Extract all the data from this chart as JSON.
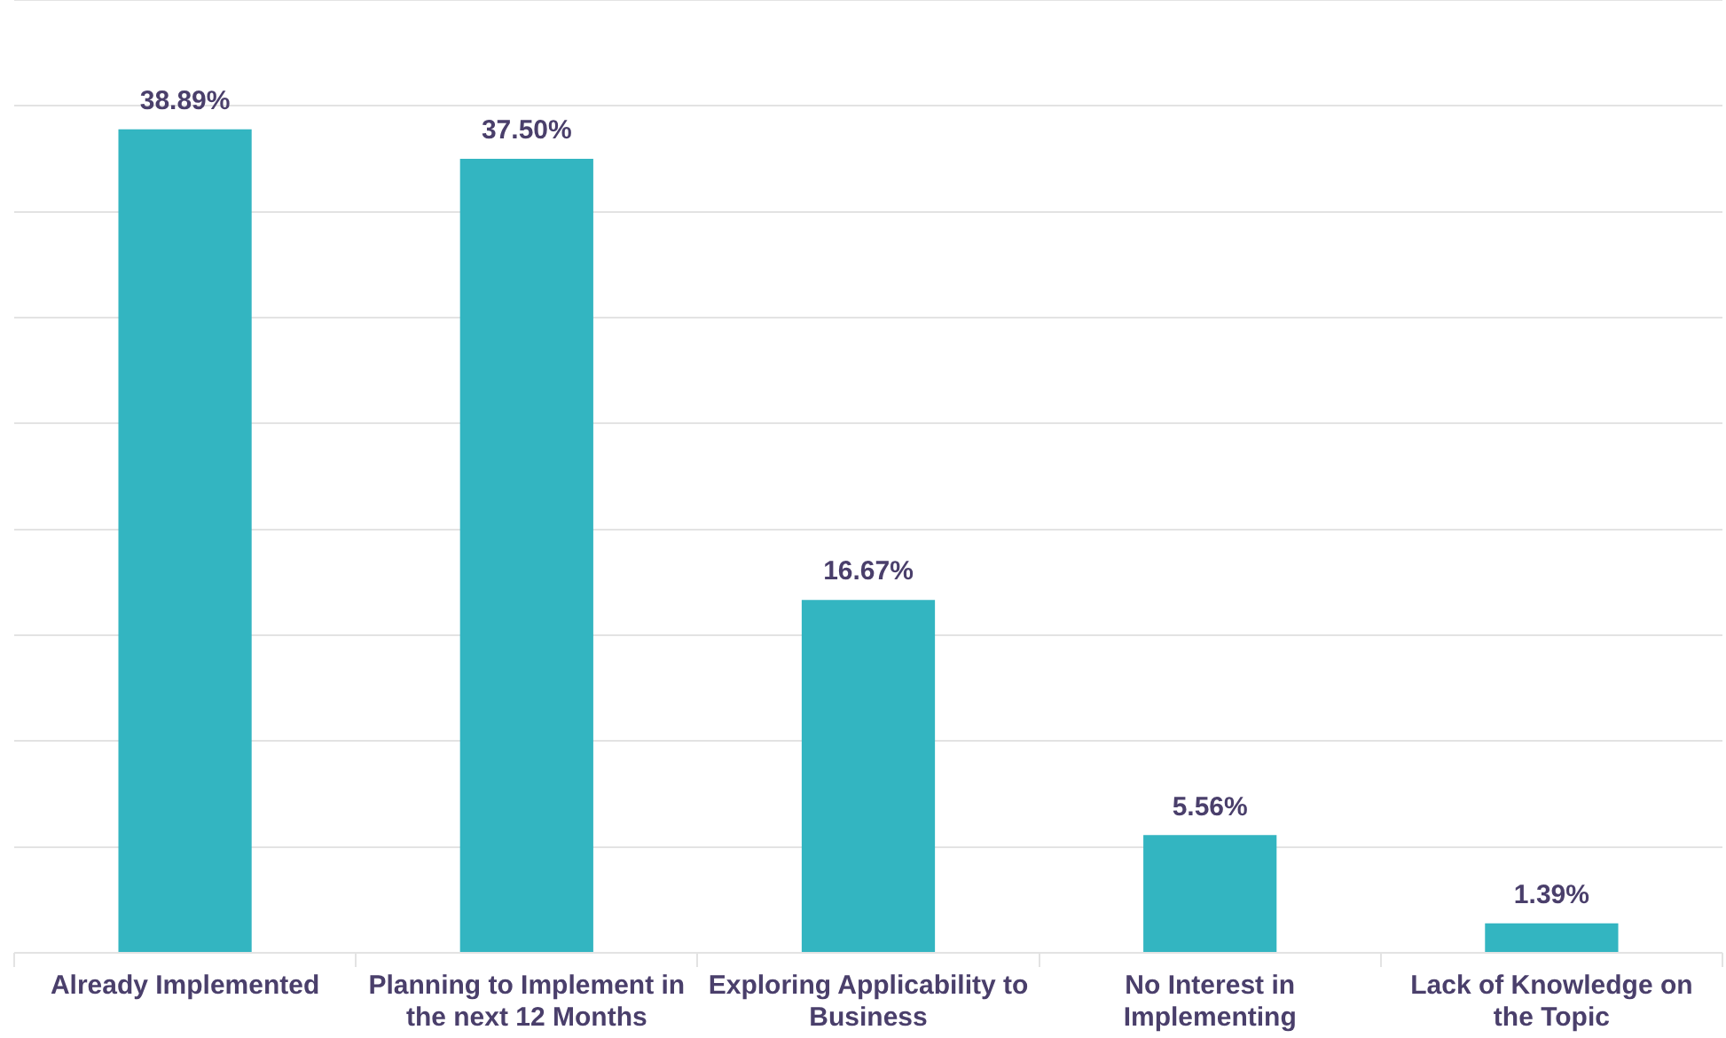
{
  "chart_data": {
    "type": "bar",
    "categories": [
      "Already Implemented",
      "Planning to Implement in the next 12 Months",
      "Exploring Applicability to Business",
      "No Interest in Implementing",
      "Lack of Knowledge on the Topic"
    ],
    "values": [
      38.89,
      37.5,
      16.67,
      5.56,
      1.39
    ],
    "value_labels": [
      "38.89%",
      "37.50%",
      "16.67%",
      "5.56%",
      "1.39%"
    ],
    "color": "#33b5c1",
    "ylim": [
      0,
      45
    ],
    "yticks": [
      0,
      5,
      10,
      15,
      20,
      25,
      30,
      35,
      40,
      45
    ],
    "tick_labels": "x",
    "grid": "y",
    "legend": false
  }
}
